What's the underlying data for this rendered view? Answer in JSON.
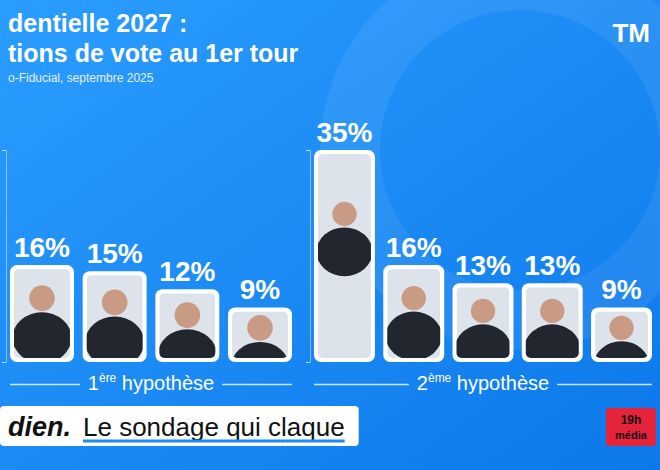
{
  "header": {
    "title": "dentielle 2027 :",
    "subtitle": "tions de vote au 1er tour",
    "source": "o-Fiducial, septembre 2025",
    "logo": "TM"
  },
  "chart_data": [
    {
      "type": "bar",
      "title": "1ère hypothèse",
      "categories": [
        null,
        null,
        null,
        null
      ],
      "values": [
        16,
        15,
        12,
        9
      ],
      "value_labels": [
        "16%",
        "15%",
        "12%",
        "9%"
      ],
      "color": "#ffffff",
      "data_labels": true,
      "tick_labels": false,
      "ylim": [
        0,
        35
      ],
      "yticks": [
        0,
        35
      ]
    },
    {
      "type": "bar",
      "title": "2ème hypothèse",
      "categories": [
        null,
        null,
        null,
        null,
        null
      ],
      "values": [
        35,
        16,
        13,
        13,
        9
      ],
      "value_labels": [
        "35%",
        "16%",
        "13%",
        "13%",
        "9%"
      ],
      "color": "#ffffff",
      "data_labels": true,
      "tick_labels": false,
      "ylim": [
        0,
        35
      ],
      "yticks": [
        0,
        35
      ]
    }
  ],
  "footer": {
    "show": "dien.",
    "tagline": "Le sondage qui claque",
    "badge_time": "19h",
    "badge_text": "média"
  }
}
